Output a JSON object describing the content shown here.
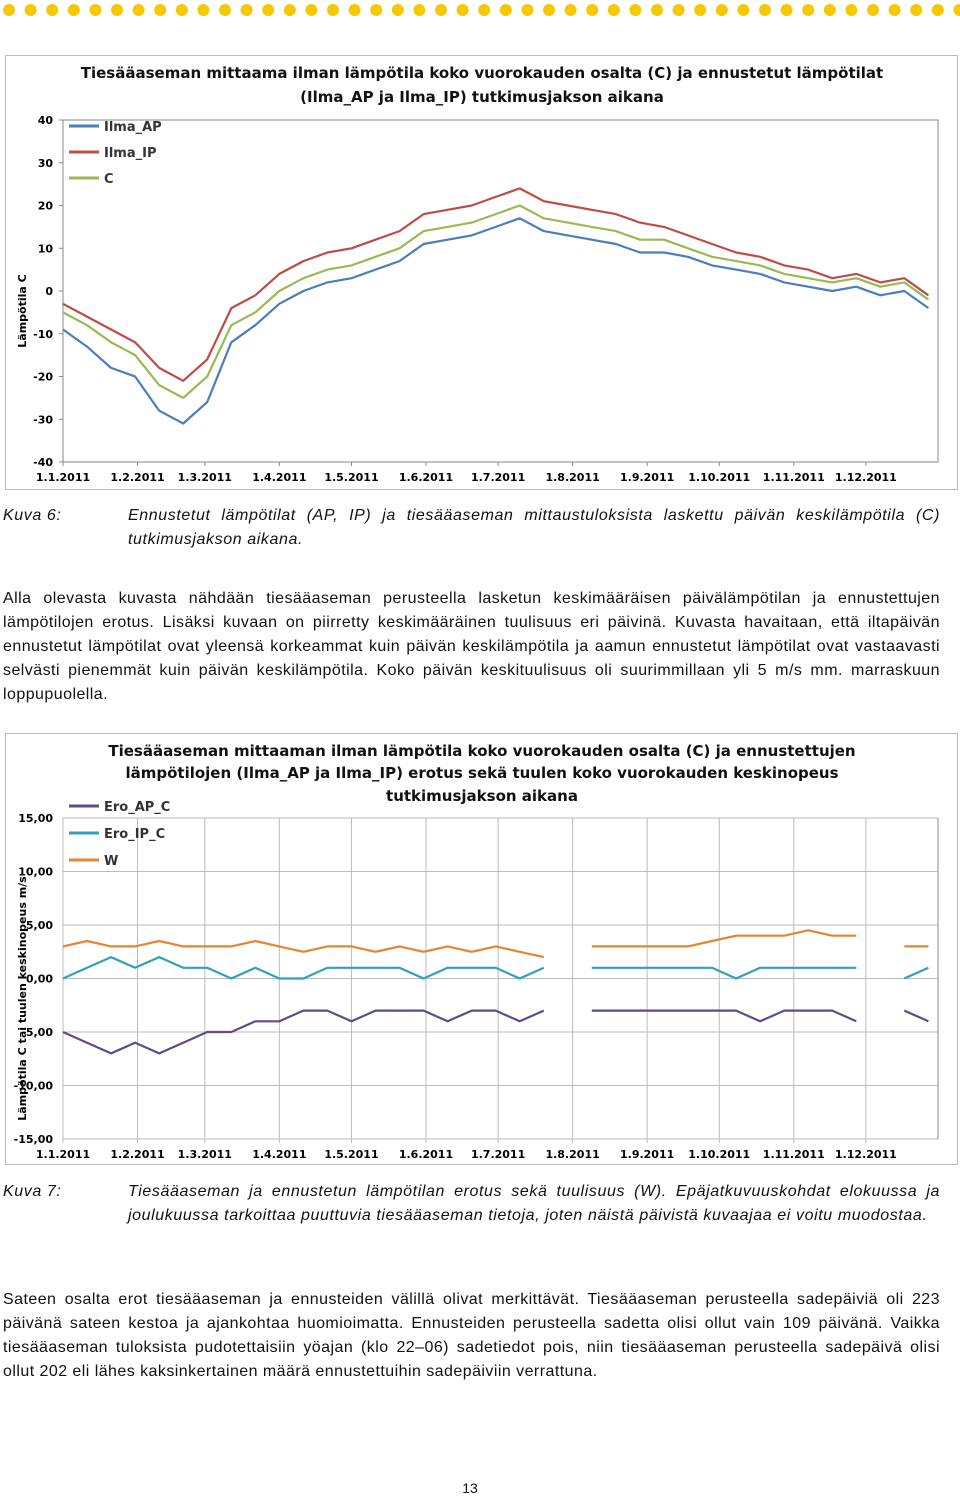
{
  "chart_data": [
    {
      "type": "line",
      "title": [
        "Tiesääaseman mittaama ilman lämpötila koko vuorokauden osalta (C) ja ennustetut lämpötilat",
        "(Ilma_AP ja Ilma_IP) tutkimusjakson aikana"
      ],
      "ylabel": "Lämpötila C",
      "x": [
        1,
        11,
        21,
        31,
        41,
        51,
        61,
        71,
        81,
        91,
        101,
        111,
        121,
        131,
        141,
        151,
        161,
        171,
        181,
        191,
        201,
        211,
        221,
        231,
        241,
        251,
        261,
        271,
        281,
        291,
        301,
        311,
        321,
        331,
        341,
        351,
        361
      ],
      "xlim": [
        1,
        365
      ],
      "xticks": [
        {
          "value": 1,
          "label": "1.1.2011"
        },
        {
          "value": 32,
          "label": "1.2.2011"
        },
        {
          "value": 60,
          "label": "1.3.2011"
        },
        {
          "value": 91,
          "label": "1.4.2011"
        },
        {
          "value": 121,
          "label": "1.5.2011"
        },
        {
          "value": 152,
          "label": "1.6.2011"
        },
        {
          "value": 182,
          "label": "1.7.2011"
        },
        {
          "value": 213,
          "label": "1.8.2011"
        },
        {
          "value": 244,
          "label": "1.9.2011"
        },
        {
          "value": 274,
          "label": "1.10.2011"
        },
        {
          "value": 305,
          "label": "1.11.2011"
        },
        {
          "value": 335,
          "label": "1.12.2011"
        }
      ],
      "ylim": [
        -40,
        40
      ],
      "yticks": [
        -40,
        -30,
        -20,
        -10,
        0,
        10,
        20,
        30,
        40
      ],
      "grid": false,
      "series": [
        {
          "name": "Ilma_AP",
          "color": "#4a7ebb",
          "values": [
            -9,
            -13,
            -18,
            -20,
            -28,
            -31,
            -26,
            -12,
            -8,
            -3,
            0,
            2,
            3,
            5,
            7,
            11,
            12,
            13,
            15,
            17,
            14,
            13,
            12,
            11,
            9,
            9,
            8,
            6,
            5,
            4,
            2,
            1,
            0,
            1,
            -1,
            0,
            -4
          ]
        },
        {
          "name": "Ilma_IP",
          "color": "#be4b48",
          "values": [
            -3,
            -6,
            -9,
            -12,
            -18,
            -21,
            -16,
            -4,
            -1,
            4,
            7,
            9,
            10,
            12,
            14,
            18,
            19,
            20,
            22,
            24,
            21,
            20,
            19,
            18,
            16,
            15,
            13,
            11,
            9,
            8,
            6,
            5,
            3,
            4,
            2,
            3,
            -1
          ]
        },
        {
          "name": "C",
          "color": "#98b954",
          "values": [
            -5,
            -8,
            -12,
            -15,
            -22,
            -25,
            -20,
            -8,
            -5,
            0,
            3,
            5,
            6,
            8,
            10,
            14,
            15,
            16,
            18,
            20,
            17,
            16,
            15,
            14,
            12,
            12,
            10,
            8,
            7,
            6,
            4,
            3,
            2,
            3,
            1,
            2,
            -2
          ]
        }
      ]
    },
    {
      "type": "line",
      "title": [
        "Tiesääaseman mittaaman ilman lämpötila koko vuorokauden osalta (C) ja ennustettujen",
        "lämpötilojen (Ilma_AP ja Ilma_IP) erotus sekä tuulen koko vuorokauden keskinopeus",
        "tutkimusjakson aikana"
      ],
      "ylabel": "Lämpötila C tai tuulen keskinopeus m/s",
      "x": [
        1,
        11,
        21,
        31,
        41,
        51,
        61,
        71,
        81,
        91,
        101,
        111,
        121,
        131,
        141,
        151,
        161,
        171,
        181,
        191,
        201,
        211,
        221,
        231,
        241,
        251,
        261,
        271,
        281,
        291,
        301,
        311,
        321,
        331,
        341,
        351,
        361
      ],
      "xlim": [
        1,
        365
      ],
      "xticks": [
        {
          "value": 1,
          "label": "1.1.2011"
        },
        {
          "value": 32,
          "label": "1.2.2011"
        },
        {
          "value": 60,
          "label": "1.3.2011"
        },
        {
          "value": 91,
          "label": "1.4.2011"
        },
        {
          "value": 121,
          "label": "1.5.2011"
        },
        {
          "value": 152,
          "label": "1.6.2011"
        },
        {
          "value": 182,
          "label": "1.7.2011"
        },
        {
          "value": 213,
          "label": "1.8.2011"
        },
        {
          "value": 244,
          "label": "1.9.2011"
        },
        {
          "value": 274,
          "label": "1.10.2011"
        },
        {
          "value": 305,
          "label": "1.11.2011"
        },
        {
          "value": 335,
          "label": "1.12.2011"
        }
      ],
      "ylim": [
        -15,
        15
      ],
      "yticks": [
        {
          "value": -15,
          "label": "-15,00"
        },
        {
          "value": -10,
          "label": "-10,00"
        },
        {
          "value": -5,
          "label": "-5,00"
        },
        {
          "value": 0,
          "label": "0,00"
        },
        {
          "value": 5,
          "label": "5,00"
        },
        {
          "value": 10,
          "label": "10,00"
        },
        {
          "value": 15,
          "label": "15,00"
        }
      ],
      "grid": true,
      "series": [
        {
          "name": "Ero_AP_C",
          "color": "#5f4b8b",
          "values": [
            -5,
            -6,
            -7,
            -6,
            -7,
            -6,
            -5,
            -5,
            -4,
            -4,
            -3,
            -3,
            -4,
            -3,
            -3,
            -3,
            -4,
            -3,
            -3,
            -4,
            -3,
            null,
            -3,
            -3,
            -3,
            -3,
            -3,
            -3,
            -3,
            -4,
            -3,
            -3,
            -3,
            -4,
            null,
            -3,
            -4
          ]
        },
        {
          "name": "Ero_IP_C",
          "color": "#31a0b8",
          "values": [
            0,
            1,
            2,
            1,
            2,
            1,
            1,
            0,
            1,
            0,
            0,
            1,
            1,
            1,
            1,
            0,
            1,
            1,
            1,
            0,
            1,
            null,
            1,
            1,
            1,
            1,
            1,
            1,
            0,
            1,
            1,
            1,
            1,
            1,
            null,
            0,
            1
          ]
        },
        {
          "name": "W",
          "color": "#e6852f",
          "values": [
            3,
            3.5,
            3,
            3,
            3.5,
            3,
            3,
            3,
            3.5,
            3,
            2.5,
            3,
            3,
            2.5,
            3,
            2.5,
            3,
            2.5,
            3,
            2.5,
            2,
            null,
            3,
            3,
            3,
            3,
            3,
            3.5,
            4,
            4,
            4,
            4.5,
            4,
            4,
            null,
            3,
            3
          ]
        }
      ]
    }
  ],
  "captions": [
    {
      "label": "Kuva 6:",
      "text": "Ennustetut lämpötilat (AP, IP) ja tiesääaseman mittaustuloksista laskettu päivän keskilämpötila (C) tutkimusjakson aikana."
    },
    {
      "label": "Kuva 7:",
      "text": "Tiesääaseman ja ennustetun lämpötilan erotus sekä tuulisuus (W). Epäjatkuvuuskohdat elokuussa ja joulukuussa tarkoittaa puuttuvia tiesääaseman tietoja, joten näistä päivistä kuvaajaa ei voitu muodostaa."
    }
  ],
  "paragraphs": [
    "Alla olevasta kuvasta nähdään tiesääaseman perusteella lasketun keskimääräisen päivälämpötilan ja ennustettujen lämpötilojen erotus. Lisäksi kuvaan on piirretty keskimääräinen tuulisuus eri päivinä. Kuvasta havaitaan, että iltapäivän ennustetut lämpötilat ovat yleensä korkeammat kuin päivän keskilämpötila ja aamun ennustetut lämpötilat ovat vastaavasti selvästi pienemmät kuin päivän keskilämpötila. Koko päivän keskituulisuus oli suurimmillaan yli 5 m/s mm. marraskuun loppupuolella.",
    "Sateen osalta erot tiesääaseman ja ennusteiden välillä olivat merkittävät. Tiesääaseman perusteella sadepäiviä oli 223 päivänä sateen kestoa ja ajankohtaa huomioimatta. Ennusteiden perusteella sadetta olisi ollut vain 109 päivänä. Vaikka tiesääaseman tuloksista pudotettaisiin yöajan (klo 22–06) sadetiedot pois, niin tiesääaseman perusteella sadepäivä olisi ollut 202 eli lähes kaksinkertainen määrä ennustettuihin sadepäiviin verrattuna."
  ],
  "page_number": "13"
}
